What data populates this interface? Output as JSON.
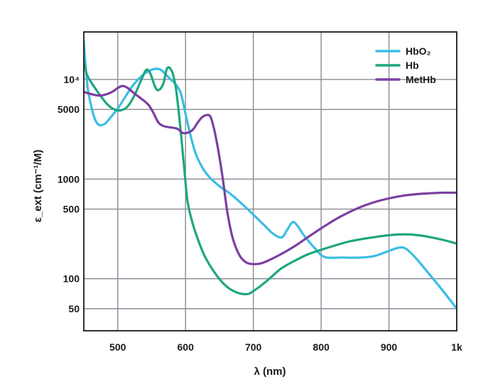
{
  "chart_data": {
    "type": "line",
    "title": "",
    "xlabel": "λ (nm)",
    "ylabel": "ε_ext (cm⁻¹/M)",
    "xlim": [
      450,
      1000
    ],
    "ylim": [
      30,
      30000
    ],
    "yscale": "log",
    "grid": true,
    "legend_position": "top-right",
    "x_ticks": [
      {
        "value": 500,
        "label": "500"
      },
      {
        "value": 600,
        "label": "600"
      },
      {
        "value": 700,
        "label": "700"
      },
      {
        "value": 800,
        "label": "800"
      },
      {
        "value": 900,
        "label": "900"
      },
      {
        "value": 1000,
        "label": "1k"
      }
    ],
    "y_ticks": [
      {
        "value": 10000,
        "label": "10⁴"
      },
      {
        "value": 5000,
        "label": "5000"
      },
      {
        "value": 1000,
        "label": "1000"
      },
      {
        "value": 500,
        "label": "500"
      },
      {
        "value": 100,
        "label": "100"
      },
      {
        "value": 50,
        "label": "50"
      }
    ],
    "series": [
      {
        "name": "HbO₂",
        "color": "#3bbde4",
        "points": [
          [
            450,
            24000
          ],
          [
            455,
            9000
          ],
          [
            462,
            5000
          ],
          [
            470,
            3600
          ],
          [
            480,
            3550
          ],
          [
            490,
            4200
          ],
          [
            500,
            5100
          ],
          [
            510,
            6500
          ],
          [
            520,
            8300
          ],
          [
            530,
            10000
          ],
          [
            540,
            11500
          ],
          [
            550,
            12500
          ],
          [
            558,
            12800
          ],
          [
            565,
            12300
          ],
          [
            575,
            10500
          ],
          [
            585,
            9000
          ],
          [
            593,
            7300
          ],
          [
            600,
            4500
          ],
          [
            607,
            2800
          ],
          [
            615,
            1800
          ],
          [
            625,
            1300
          ],
          [
            635,
            1050
          ],
          [
            650,
            850
          ],
          [
            665,
            720
          ],
          [
            680,
            590
          ],
          [
            700,
            440
          ],
          [
            715,
            350
          ],
          [
            730,
            280
          ],
          [
            742,
            260
          ],
          [
            750,
            310
          ],
          [
            758,
            370
          ],
          [
            765,
            340
          ],
          [
            775,
            270
          ],
          [
            790,
            205
          ],
          [
            805,
            165
          ],
          [
            830,
            163
          ],
          [
            860,
            163
          ],
          [
            880,
            170
          ],
          [
            900,
            190
          ],
          [
            915,
            205
          ],
          [
            925,
            200
          ],
          [
            940,
            160
          ],
          [
            960,
            110
          ],
          [
            980,
            75
          ],
          [
            1000,
            50
          ]
        ]
      },
      {
        "name": "Hb",
        "color": "#1fa67f",
        "points": [
          [
            450,
            15000
          ],
          [
            455,
            11000
          ],
          [
            465,
            8500
          ],
          [
            475,
            6800
          ],
          [
            485,
            5600
          ],
          [
            495,
            5000
          ],
          [
            505,
            4900
          ],
          [
            515,
            5400
          ],
          [
            525,
            7000
          ],
          [
            535,
            10000
          ],
          [
            542,
            12500
          ],
          [
            548,
            11500
          ],
          [
            555,
            8500
          ],
          [
            560,
            7800
          ],
          [
            567,
            9000
          ],
          [
            573,
            13000
          ],
          [
            580,
            12000
          ],
          [
            586,
            8000
          ],
          [
            592,
            3500
          ],
          [
            598,
            1300
          ],
          [
            603,
            600
          ],
          [
            610,
            370
          ],
          [
            620,
            230
          ],
          [
            630,
            160
          ],
          [
            645,
            110
          ],
          [
            660,
            84
          ],
          [
            675,
            73
          ],
          [
            690,
            70
          ],
          [
            700,
            75
          ],
          [
            720,
            95
          ],
          [
            740,
            125
          ],
          [
            760,
            150
          ],
          [
            780,
            175
          ],
          [
            800,
            195
          ],
          [
            820,
            215
          ],
          [
            840,
            235
          ],
          [
            860,
            250
          ],
          [
            880,
            262
          ],
          [
            900,
            273
          ],
          [
            915,
            278
          ],
          [
            930,
            278
          ],
          [
            945,
            272
          ],
          [
            960,
            262
          ],
          [
            980,
            245
          ],
          [
            1000,
            225
          ]
        ]
      },
      {
        "name": "MetHb",
        "color": "#7b3fa0",
        "points": [
          [
            450,
            7500
          ],
          [
            462,
            7100
          ],
          [
            475,
            6900
          ],
          [
            490,
            7400
          ],
          [
            500,
            8200
          ],
          [
            507,
            8600
          ],
          [
            515,
            8200
          ],
          [
            525,
            7200
          ],
          [
            535,
            6400
          ],
          [
            545,
            5600
          ],
          [
            552,
            4700
          ],
          [
            560,
            3700
          ],
          [
            568,
            3400
          ],
          [
            578,
            3300
          ],
          [
            588,
            3200
          ],
          [
            596,
            2900
          ],
          [
            605,
            2950
          ],
          [
            612,
            3200
          ],
          [
            618,
            3700
          ],
          [
            625,
            4200
          ],
          [
            632,
            4400
          ],
          [
            637,
            4200
          ],
          [
            642,
            3200
          ],
          [
            648,
            2000
          ],
          [
            655,
            1000
          ],
          [
            662,
            450
          ],
          [
            670,
            250
          ],
          [
            680,
            170
          ],
          [
            690,
            145
          ],
          [
            700,
            140
          ],
          [
            710,
            142
          ],
          [
            720,
            150
          ],
          [
            740,
            175
          ],
          [
            760,
            210
          ],
          [
            780,
            260
          ],
          [
            800,
            320
          ],
          [
            820,
            390
          ],
          [
            840,
            460
          ],
          [
            860,
            530
          ],
          [
            880,
            590
          ],
          [
            900,
            640
          ],
          [
            920,
            680
          ],
          [
            940,
            705
          ],
          [
            960,
            720
          ],
          [
            980,
            730
          ],
          [
            1000,
            730
          ]
        ]
      }
    ]
  }
}
